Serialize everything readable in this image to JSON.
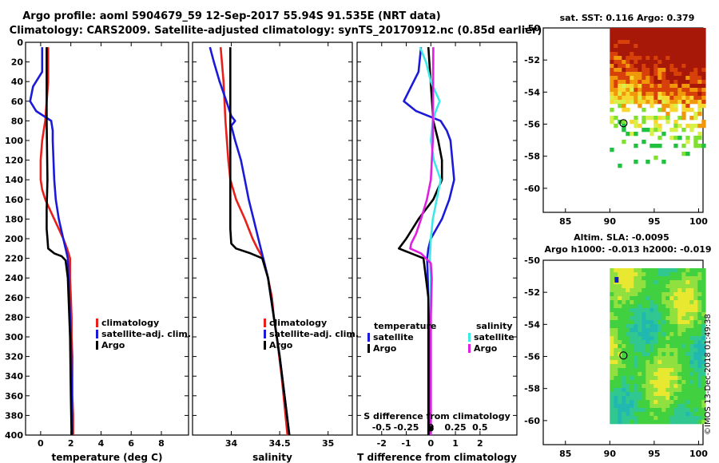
{
  "header": {
    "line1": "Argo profile: aoml 5904679_59 12-Sep-2017 55.94S 91.535E (NRT data)",
    "line2": "Climatology: CARS2009. Satellite-adjusted climatology: synTS_20170912.nc (0.85d earlier)"
  },
  "watermark": "©IMOS 13-Dec-2018 01:49:38",
  "colors": {
    "climatology": "#e8201c",
    "satellite": "#1a1ad8",
    "argo": "#000000",
    "satellite_salinity": "#3ee8e8",
    "argo_salinity": "#e020e0"
  },
  "chart_data": [
    {
      "id": "temperature",
      "type": "line",
      "xlabel": "temperature (deg C)",
      "ylabel": "",
      "xlim": [
        -1,
        9.8
      ],
      "ylim": [
        400,
        0
      ],
      "xticks": [
        0,
        2,
        4,
        6,
        8
      ],
      "xtick_labels": [
        "0",
        "2",
        "4",
        "6",
        "8"
      ],
      "yticks": [
        0,
        20,
        40,
        60,
        80,
        100,
        120,
        140,
        160,
        180,
        200,
        220,
        240,
        260,
        280,
        300,
        320,
        340,
        360,
        380,
        400
      ],
      "ytick_labels": [
        "0",
        "20",
        "40",
        "60",
        "80",
        "100",
        "120",
        "140",
        "160",
        "180",
        "200",
        "220",
        "240",
        "260",
        "280",
        "300",
        "320",
        "340",
        "360",
        "380",
        "400"
      ],
      "legend": [
        "climatology",
        "satellite-adj. clim.",
        "Argo"
      ],
      "legend_position": "right-middle",
      "series": [
        {
          "name": "climatology",
          "color_key": "climatology",
          "depth": [
            5,
            40,
            80,
            100,
            120,
            140,
            150,
            160,
            170,
            180,
            190,
            200,
            210,
            220,
            240,
            260,
            280,
            300,
            320,
            340,
            360,
            380,
            400
          ],
          "values": [
            0.5,
            0.5,
            0.3,
            0.1,
            0.0,
            0.0,
            0.1,
            0.3,
            0.6,
            0.9,
            1.2,
            1.5,
            1.75,
            1.95,
            1.95,
            2.0,
            2.05,
            2.05,
            2.1,
            2.1,
            2.1,
            2.15,
            2.15
          ]
        },
        {
          "name": "satellite-adj. clim.",
          "color_key": "satellite",
          "depth": [
            5,
            30,
            45,
            60,
            70,
            80,
            90,
            100,
            140,
            160,
            180,
            200,
            210,
            220,
            240,
            260,
            300,
            340,
            400
          ],
          "values": [
            0.1,
            0.1,
            -0.5,
            -0.7,
            -0.3,
            0.7,
            0.8,
            0.8,
            0.9,
            1.0,
            1.2,
            1.5,
            1.65,
            1.8,
            1.85,
            1.9,
            2.0,
            2.05,
            2.1
          ]
        },
        {
          "name": "Argo",
          "color_key": "argo",
          "depth": [
            5,
            80,
            140,
            170,
            180,
            190,
            200,
            210,
            215,
            218,
            222,
            240,
            300,
            360,
            400
          ],
          "values": [
            0.4,
            0.4,
            0.45,
            0.4,
            0.4,
            0.4,
            0.45,
            0.5,
            0.9,
            1.4,
            1.65,
            1.8,
            1.95,
            2.0,
            2.05
          ]
        }
      ]
    },
    {
      "id": "salinity",
      "type": "line",
      "xlabel": "salinity",
      "ylabel": "",
      "xlim": [
        33.6,
        35.25
      ],
      "ylim": [
        400,
        0
      ],
      "xticks": [
        34,
        34.5,
        35
      ],
      "xtick_labels": [
        "34",
        "34.5",
        "35"
      ],
      "legend": [
        "climatology",
        "satellite-adj. clim.",
        "Argo"
      ],
      "legend_position": "right-middle",
      "series": [
        {
          "name": "climatology",
          "color_key": "climatology",
          "depth": [
            5,
            40,
            80,
            120,
            140,
            160,
            180,
            200,
            210,
            220,
            240,
            260,
            280,
            300,
            340,
            400
          ],
          "values": [
            33.89,
            33.92,
            33.94,
            33.97,
            33.99,
            34.05,
            34.14,
            34.22,
            34.27,
            34.33,
            34.38,
            34.42,
            34.44,
            34.47,
            34.52,
            34.58
          ]
        },
        {
          "name": "satellite-adj. clim.",
          "color_key": "satellite",
          "depth": [
            5,
            20,
            40,
            60,
            75,
            80,
            85,
            100,
            120,
            140,
            160,
            180,
            200,
            220,
            240,
            280,
            320,
            360,
            400
          ],
          "values": [
            33.78,
            33.82,
            33.88,
            33.95,
            34.0,
            34.04,
            34.0,
            34.04,
            34.1,
            34.14,
            34.18,
            34.23,
            34.28,
            34.33,
            34.38,
            34.44,
            34.5,
            34.55,
            34.6
          ]
        },
        {
          "name": "Argo",
          "color_key": "argo",
          "depth": [
            5,
            100,
            150,
            190,
            205,
            210,
            215,
            220,
            240,
            280,
            320,
            360,
            400
          ],
          "values": [
            33.99,
            33.99,
            33.99,
            33.99,
            34.0,
            34.05,
            34.2,
            34.32,
            34.38,
            34.44,
            34.5,
            34.55,
            34.6
          ]
        }
      ]
    },
    {
      "id": "difference",
      "type": "line",
      "xlabel": "T difference from climatology",
      "xlabel2": "S difference from climatology",
      "xlim": [
        -3,
        3.5
      ],
      "ylim": [
        400,
        0
      ],
      "xticks": [
        -2,
        -1,
        0,
        1,
        2
      ],
      "xtick_labels": [
        "-2",
        "-1",
        "0",
        "1",
        "2"
      ],
      "s_ticks": [
        -0.5,
        -0.25,
        0,
        0.25,
        0.5
      ],
      "s_tick_labels": [
        "-0.5",
        "-0.25",
        "0",
        "0.25",
        "0.5"
      ],
      "s_scale": 4,
      "legend_t_title": "temperature",
      "legend_s_title": "salinity",
      "legend": [
        "satellite",
        "Argo",
        "satellite",
        "Argo"
      ],
      "legend_position": "bottom",
      "series": [
        {
          "name": "satellite",
          "group": "temperature",
          "color_key": "satellite",
          "depth": [
            5,
            30,
            45,
            60,
            70,
            80,
            90,
            100,
            140,
            160,
            180,
            200,
            210,
            220,
            260,
            320,
            360,
            400
          ],
          "values": [
            -0.4,
            -0.5,
            -0.8,
            -1.1,
            -0.6,
            0.4,
            0.65,
            0.8,
            0.95,
            0.75,
            0.45,
            0.0,
            -0.1,
            -0.15,
            -0.1,
            -0.05,
            -0.05,
            -0.05
          ]
        },
        {
          "name": "Argo",
          "group": "temperature",
          "color_key": "argo",
          "depth": [
            5,
            80,
            100,
            120,
            140,
            160,
            180,
            200,
            210,
            220,
            260,
            320,
            400
          ],
          "values": [
            -0.1,
            0.1,
            0.3,
            0.45,
            0.45,
            0.1,
            -0.5,
            -1.0,
            -1.3,
            -0.3,
            -0.1,
            -0.1,
            -0.1
          ]
        },
        {
          "name": "satellite",
          "group": "salinity",
          "color_key": "satellite_salinity",
          "depth": [
            5,
            20,
            40,
            60,
            70,
            80,
            100,
            120,
            140,
            160,
            180,
            200,
            220,
            240,
            280,
            320,
            360,
            400
          ],
          "values": [
            -0.11,
            -0.05,
            0.0,
            0.09,
            0.05,
            0.02,
            0.0,
            0.03,
            0.1,
            0.06,
            0.02,
            0.0,
            -0.01,
            0.0,
            0.0,
            0.0,
            0.0,
            0.0
          ]
        },
        {
          "name": "Argo",
          "group": "salinity",
          "color_key": "argo_salinity",
          "depth": [
            5,
            100,
            140,
            160,
            180,
            195,
            205,
            210,
            215,
            225,
            240,
            280,
            320,
            400
          ],
          "values": [
            0.025,
            0.02,
            0.0,
            -0.04,
            -0.1,
            -0.15,
            -0.2,
            -0.21,
            -0.1,
            0.0,
            0.01,
            0.0,
            0.0,
            0.0
          ]
        }
      ]
    },
    {
      "id": "sst-map",
      "type": "heatmap",
      "title": "sat. SST: 0.116 Argo: 0.379",
      "xlim": [
        82.5,
        100.5
      ],
      "ylim": [
        -61.5,
        -50
      ],
      "xticks": [
        85,
        90,
        95,
        100
      ],
      "xtick_labels": [
        "85",
        "90",
        "95",
        "100"
      ],
      "yticks": [
        -50,
        -52,
        -54,
        -56,
        -58,
        -60
      ],
      "ytick_labels": [
        "-50",
        "-52",
        "-54",
        "-56",
        "-58",
        "-60"
      ],
      "data_lon": [
        90,
        100.5
      ],
      "data_lat": [
        -58.5,
        -50
      ],
      "marker": {
        "lon": 91.535,
        "lat": -55.94
      }
    },
    {
      "id": "sla-map",
      "type": "heatmap",
      "title": "Altim. SLA: -0.0095",
      "subtitle": "Argo h1000: -0.013 h2000: -0.019",
      "xlim": [
        82.5,
        100.5
      ],
      "ylim": [
        -61.5,
        -50
      ],
      "xticks": [
        85,
        90,
        95,
        100
      ],
      "xtick_labels": [
        "85",
        "90",
        "95",
        "100"
      ],
      "yticks": [
        -50,
        -52,
        -54,
        -56,
        -58,
        -60
      ],
      "ytick_labels": [
        "-50",
        "-52",
        "-54",
        "-56",
        "-58",
        "-60"
      ],
      "data_lon": [
        90,
        100.5
      ],
      "data_lat": [
        -60,
        -50.5
      ],
      "marker": {
        "lon": 91.535,
        "lat": -55.94
      }
    }
  ]
}
